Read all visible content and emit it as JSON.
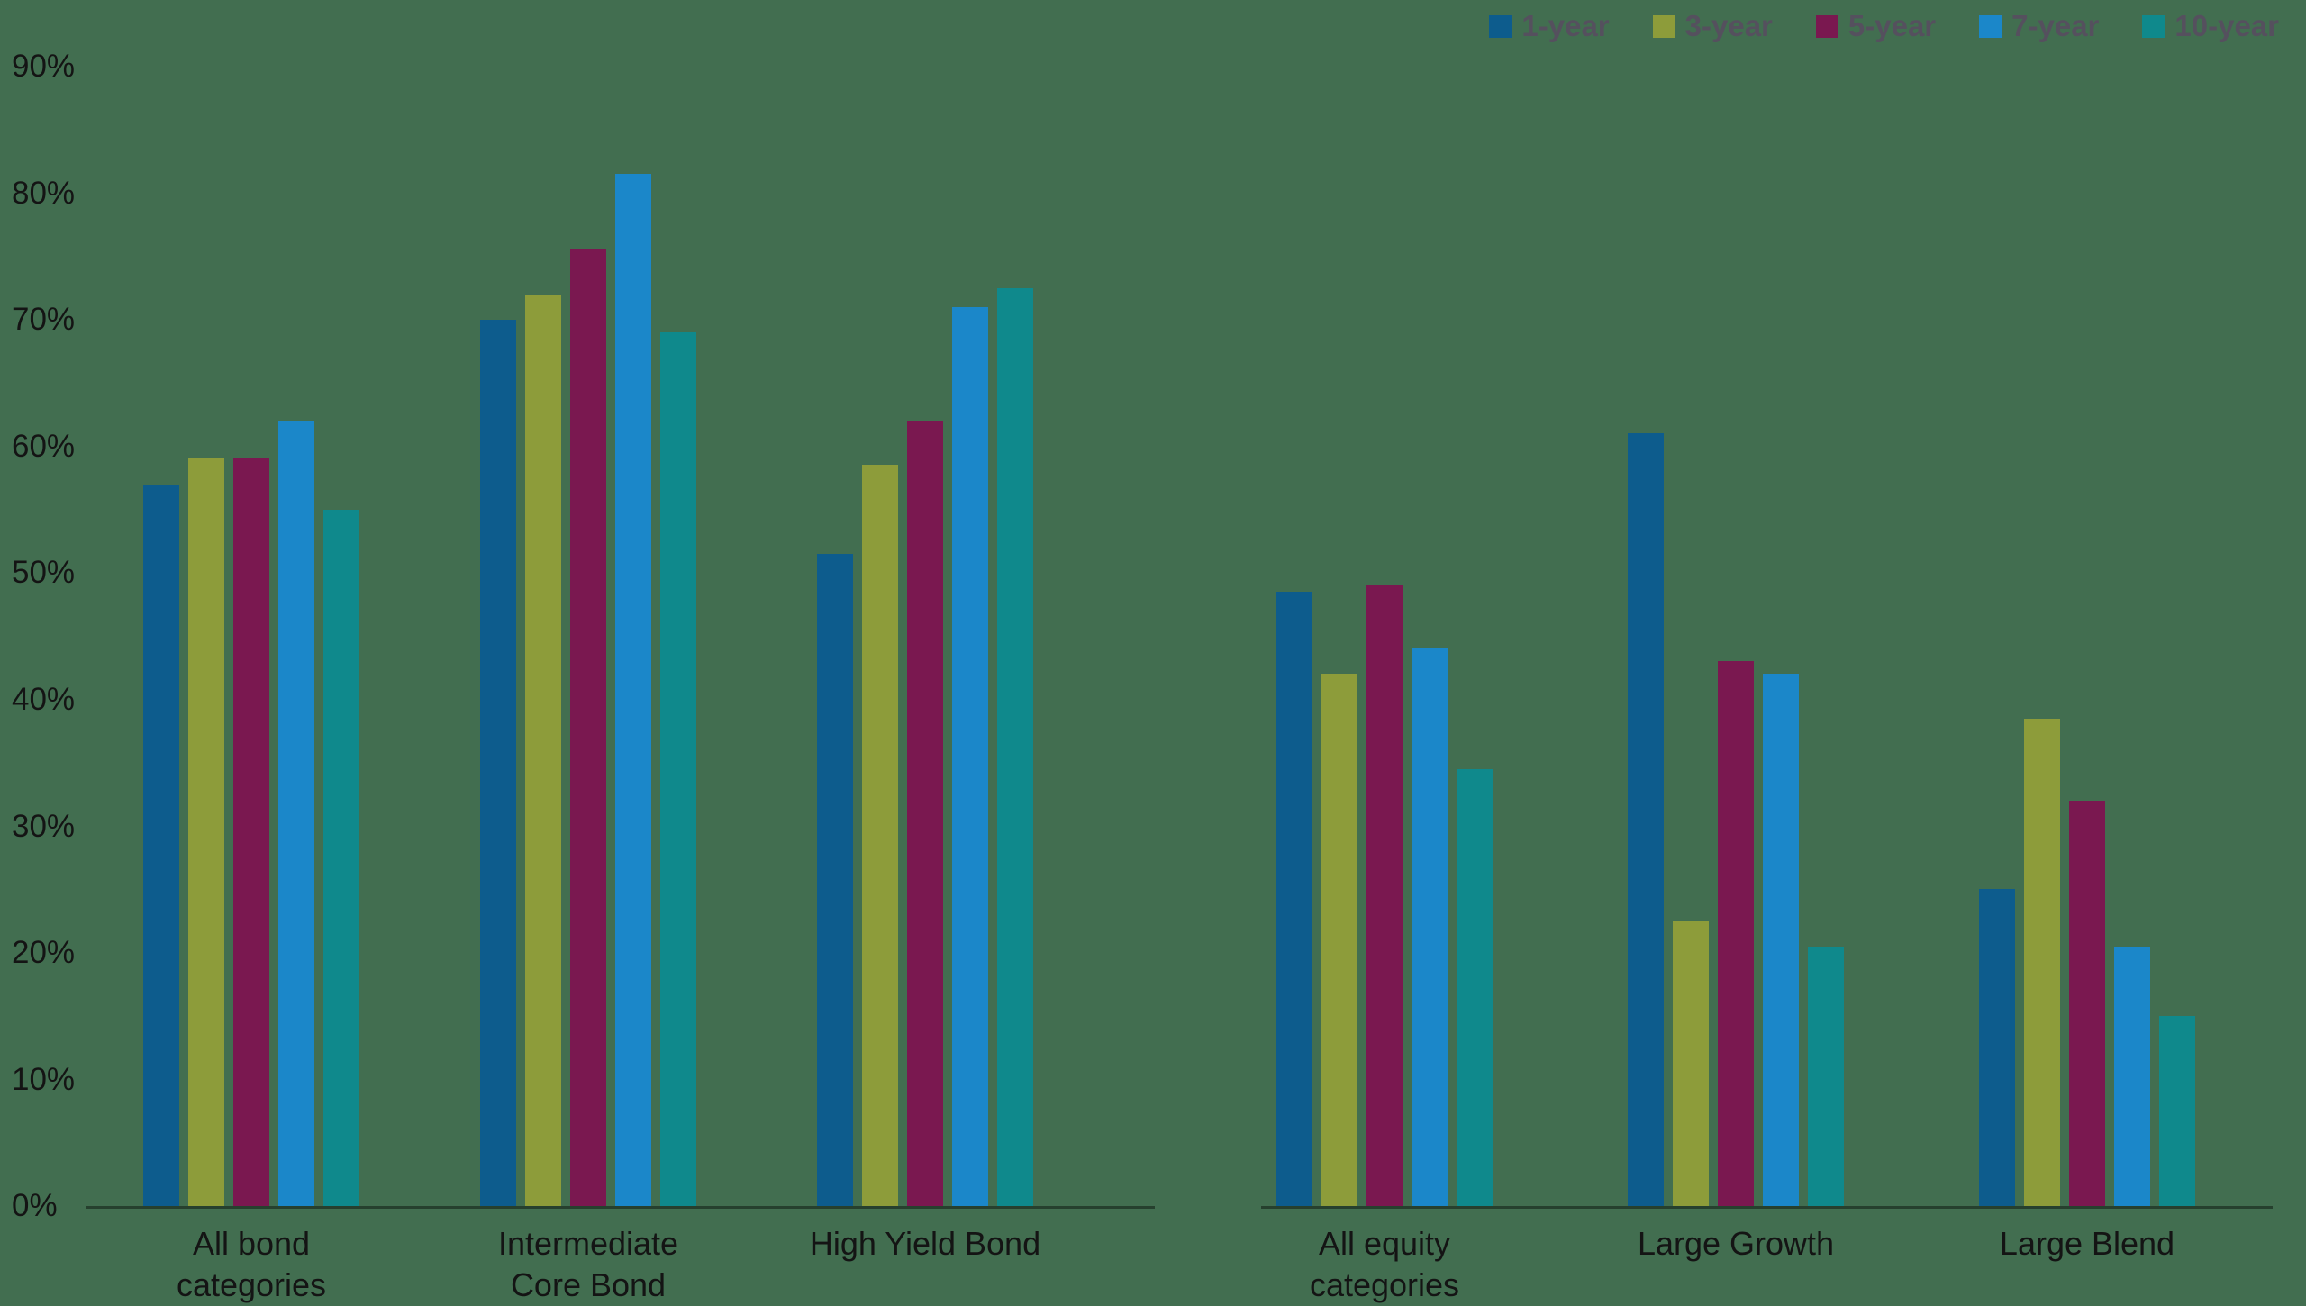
{
  "background_color": "#426e50",
  "axis": {
    "tick_labels": [
      "90%",
      "80%",
      "70%",
      "60%",
      "50%",
      "40%",
      "30%",
      "20%",
      "10%",
      "0%"
    ],
    "ymax": 90,
    "ymin": 0,
    "tick_step": 10
  },
  "legend": [
    {
      "label": "1-year",
      "color": "#0d5c8d"
    },
    {
      "label": "3-year",
      "color": "#8d9c3a"
    },
    {
      "label": "5-year",
      "color": "#7a1850"
    },
    {
      "label": "7-year",
      "color": "#1b87c9"
    },
    {
      "label": "10-year",
      "color": "#0f898c"
    }
  ],
  "chart_data": {
    "type": "bar",
    "title": "",
    "xlabel": "",
    "ylabel": "",
    "ylim": [
      0,
      90
    ],
    "grid": false,
    "legend_position": "top-right",
    "series_names": [
      "1-year",
      "3-year",
      "5-year",
      "7-year",
      "10-year"
    ],
    "panels": [
      {
        "name": "bond-categories",
        "categories": [
          [
            "All bond",
            "categories"
          ],
          [
            "Intermediate",
            "Core Bond"
          ],
          [
            "High Yield Bond"
          ]
        ],
        "series": [
          {
            "name": "1-year",
            "values": [
              57,
              70,
              51.5
            ]
          },
          {
            "name": "3-year",
            "values": [
              59,
              72,
              58.5
            ]
          },
          {
            "name": "5-year",
            "values": [
              59,
              75.5,
              62
            ]
          },
          {
            "name": "7-year",
            "values": [
              62,
              81.5,
              71
            ]
          },
          {
            "name": "10-year",
            "values": [
              55,
              69,
              72.5
            ]
          }
        ]
      },
      {
        "name": "equity-categories",
        "categories": [
          [
            "All equity",
            "categories"
          ],
          [
            "Large Growth"
          ],
          [
            "Large Blend"
          ]
        ],
        "series": [
          {
            "name": "1-year",
            "values": [
              48.5,
              61,
              25
            ]
          },
          {
            "name": "3-year",
            "values": [
              42,
              22.5,
              38.5
            ]
          },
          {
            "name": "5-year",
            "values": [
              49,
              43,
              32
            ]
          },
          {
            "name": "7-year",
            "values": [
              44,
              42,
              20.5
            ]
          },
          {
            "name": "10-year",
            "values": [
              34.5,
              20.5,
              15
            ]
          }
        ]
      }
    ]
  }
}
